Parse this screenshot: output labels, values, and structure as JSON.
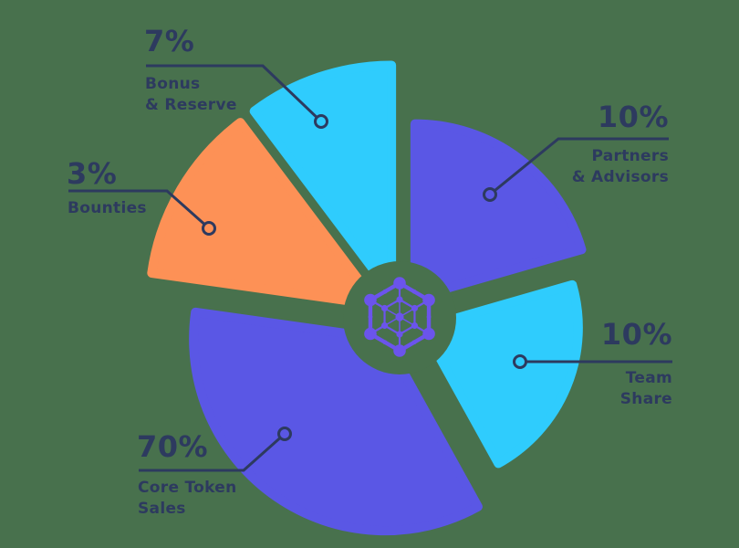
{
  "background_color": "#48714d",
  "text_color": "#2d3a5f",
  "line_color": "#2d3a5f",
  "center_icon": {
    "name": "network-hexagon-icon",
    "color": "#6b54ec"
  },
  "chart_data": {
    "type": "pie",
    "style": "exploded-donut-infographic",
    "title": "",
    "legend_position": "callouts",
    "grid": false,
    "segments": [
      {
        "id": "bonus-reserve",
        "pct_label": "7%",
        "value": 7,
        "label": "Bonus\n& Reserve",
        "color": "#2fccfd"
      },
      {
        "id": "partners-advisors",
        "pct_label": "10%",
        "value": 10,
        "label": "Partners\n& Advisors",
        "color": "#5a57e5"
      },
      {
        "id": "team-share",
        "pct_label": "10%",
        "value": 10,
        "label": "Team\nShare",
        "color": "#2fccfd"
      },
      {
        "id": "core-token-sales",
        "pct_label": "70%",
        "value": 70,
        "label": "Core Token\nSales",
        "color": "#5a57e5"
      },
      {
        "id": "bounties",
        "pct_label": "3%",
        "value": 3,
        "label": "Bounties",
        "color": "#fd9156"
      }
    ]
  }
}
